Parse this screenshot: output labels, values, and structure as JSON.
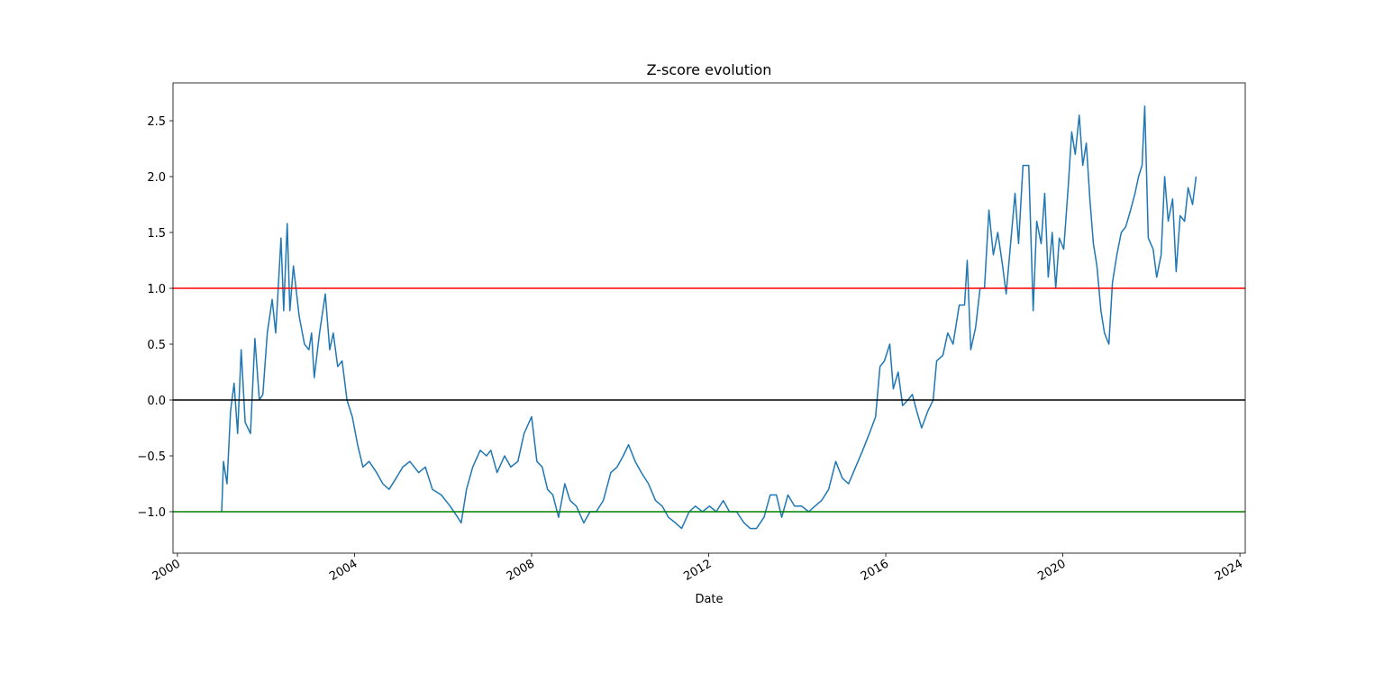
{
  "chart_data": {
    "type": "line",
    "title": "Z-score evolution",
    "x_label": "Date",
    "xlim": [
      1999.9,
      2024.12
    ],
    "xticks": [
      2000,
      2004,
      2008,
      2012,
      2016,
      2020,
      2024
    ],
    "ylim": [
      -1.371,
      2.839
    ],
    "yticks": [
      {
        "value": -1.0,
        "label": "−1.0"
      },
      {
        "value": -0.5,
        "label": "−0.5"
      },
      {
        "value": 0,
        "label": "0.0"
      },
      {
        "value": 0.5,
        "label": "0.5"
      },
      {
        "value": 1.0,
        "label": "1.0"
      },
      {
        "value": 1.5,
        "label": "1.5"
      },
      {
        "value": 2.0,
        "label": "2.0"
      },
      {
        "value": 2.5,
        "label": "2.5"
      }
    ],
    "hlines": [
      {
        "value": 1,
        "color": "#ff0000"
      },
      {
        "value": 0,
        "color": "#000000"
      },
      {
        "value": -1,
        "color": "#008000"
      }
    ],
    "x": [
      2001.0,
      2001.04,
      2001.12,
      2001.2,
      2001.28,
      2001.36,
      2001.44,
      2001.53,
      2001.65,
      2001.75,
      2001.85,
      2001.93,
      2002.03,
      2002.14,
      2002.22,
      2002.34,
      2002.4,
      2002.48,
      2002.54,
      2002.62,
      2002.75,
      2002.87,
      2002.97,
      2003.03,
      2003.09,
      2003.21,
      2003.34,
      2003.44,
      2003.52,
      2003.62,
      2003.72,
      2003.83,
      2003.95,
      2004.07,
      2004.19,
      2004.33,
      2004.5,
      2004.64,
      2004.78,
      2004.94,
      2005.09,
      2005.25,
      2005.45,
      2005.6,
      2005.76,
      2005.96,
      2006.16,
      2006.33,
      2006.41,
      2006.53,
      2006.67,
      2006.84,
      2006.98,
      2007.08,
      2007.22,
      2007.39,
      2007.53,
      2007.69,
      2007.83,
      2008.0,
      2008.12,
      2008.24,
      2008.36,
      2008.48,
      2008.61,
      2008.75,
      2008.87,
      2009.01,
      2009.18,
      2009.32,
      2009.46,
      2009.62,
      2009.79,
      2009.93,
      2010.07,
      2010.19,
      2010.34,
      2010.48,
      2010.64,
      2010.8,
      2010.95,
      2011.09,
      2011.25,
      2011.39,
      2011.56,
      2011.7,
      2011.86,
      2012.02,
      2012.17,
      2012.33,
      2012.47,
      2012.63,
      2012.8,
      2012.94,
      2013.08,
      2013.25,
      2013.39,
      2013.53,
      2013.65,
      2013.79,
      2013.94,
      2014.1,
      2014.26,
      2014.4,
      2014.55,
      2014.71,
      2014.87,
      2015.02,
      2015.16,
      2015.32,
      2015.48,
      2015.63,
      2015.77,
      2015.87,
      2015.97,
      2016.09,
      2016.17,
      2016.28,
      2016.38,
      2016.5,
      2016.6,
      2016.7,
      2016.81,
      2016.95,
      2017.07,
      2017.15,
      2017.29,
      2017.4,
      2017.52,
      2017.66,
      2017.78,
      2017.84,
      2017.92,
      2018.03,
      2018.13,
      2018.23,
      2018.33,
      2018.43,
      2018.53,
      2018.64,
      2018.72,
      2018.82,
      2018.92,
      2019.0,
      2019.1,
      2019.23,
      2019.33,
      2019.41,
      2019.51,
      2019.59,
      2019.67,
      2019.76,
      2019.84,
      2019.92,
      2020.02,
      2020.12,
      2020.2,
      2020.28,
      2020.37,
      2020.45,
      2020.53,
      2020.61,
      2020.69,
      2020.77,
      2020.86,
      2020.94,
      2021.04,
      2021.12,
      2021.22,
      2021.32,
      2021.42,
      2021.53,
      2021.63,
      2021.71,
      2021.79,
      2021.85,
      2021.93,
      2022.04,
      2022.12,
      2022.22,
      2022.3,
      2022.38,
      2022.48,
      2022.56,
      2022.65,
      2022.75,
      2022.83,
      2022.93,
      2023.01
    ],
    "series": [
      {
        "color": "#1f77b4",
        "values": [
          -1.0,
          -0.55,
          -0.75,
          -0.1,
          0.15,
          -0.3,
          0.45,
          -0.2,
          -0.3,
          0.55,
          0.0,
          0.05,
          0.6,
          0.9,
          0.6,
          1.45,
          0.8,
          1.58,
          0.8,
          1.2,
          0.75,
          0.5,
          0.45,
          0.6,
          0.2,
          0.6,
          0.95,
          0.45,
          0.6,
          0.3,
          0.35,
          0.0,
          -0.15,
          -0.4,
          -0.6,
          -0.55,
          -0.65,
          -0.75,
          -0.8,
          -0.7,
          -0.6,
          -0.55,
          -0.65,
          -0.6,
          -0.8,
          -0.85,
          -0.95,
          -1.05,
          -1.1,
          -0.8,
          -0.6,
          -0.45,
          -0.5,
          -0.45,
          -0.65,
          -0.5,
          -0.6,
          -0.55,
          -0.3,
          -0.15,
          -0.55,
          -0.6,
          -0.8,
          -0.85,
          -1.05,
          -0.75,
          -0.9,
          -0.95,
          -1.1,
          -1.0,
          -1.0,
          -0.9,
          -0.65,
          -0.6,
          -0.5,
          -0.4,
          -0.55,
          -0.65,
          -0.75,
          -0.9,
          -0.95,
          -1.05,
          -1.1,
          -1.15,
          -1.0,
          -0.95,
          -1.0,
          -0.95,
          -1.0,
          -0.9,
          -1.0,
          -1.0,
          -1.1,
          -1.15,
          -1.15,
          -1.05,
          -0.85,
          -0.85,
          -1.05,
          -0.85,
          -0.95,
          -0.95,
          -1.0,
          -0.95,
          -0.9,
          -0.8,
          -0.55,
          -0.7,
          -0.75,
          -0.6,
          -0.45,
          -0.3,
          -0.15,
          0.3,
          0.35,
          0.5,
          0.1,
          0.25,
          -0.05,
          0.0,
          0.05,
          -0.1,
          -0.25,
          -0.1,
          0.0,
          0.35,
          0.4,
          0.6,
          0.5,
          0.85,
          0.85,
          1.25,
          0.45,
          0.65,
          1.0,
          1.0,
          1.7,
          1.3,
          1.5,
          1.2,
          0.95,
          1.4,
          1.85,
          1.4,
          2.1,
          2.1,
          0.8,
          1.6,
          1.4,
          1.85,
          1.1,
          1.5,
          1.0,
          1.45,
          1.35,
          1.9,
          2.4,
          2.2,
          2.55,
          2.1,
          2.3,
          1.8,
          1.4,
          1.2,
          0.8,
          0.6,
          0.5,
          1.05,
          1.3,
          1.5,
          1.55,
          1.7,
          1.85,
          2.0,
          2.1,
          2.63,
          1.45,
          1.35,
          1.1,
          1.3,
          2.0,
          1.6,
          1.8,
          1.15,
          1.65,
          1.6,
          1.9,
          1.75,
          2.0
        ]
      }
    ]
  }
}
